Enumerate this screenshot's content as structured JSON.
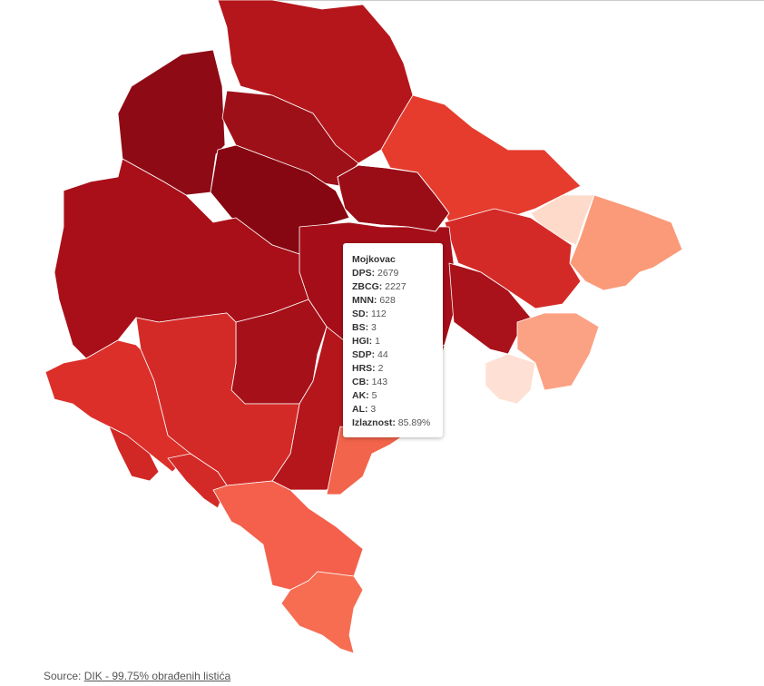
{
  "tooltip": {
    "title": "Mojkovac",
    "rows": [
      {
        "label": "DPS:",
        "value": 2679
      },
      {
        "label": "ZBCG:",
        "value": 2227
      },
      {
        "label": "MNN:",
        "value": 628
      },
      {
        "label": "SD:",
        "value": 112
      },
      {
        "label": "BS:",
        "value": 3
      },
      {
        "label": "HGI:",
        "value": 1
      },
      {
        "label": "SDP:",
        "value": 44
      },
      {
        "label": "HRS:",
        "value": 2
      },
      {
        "label": "CB:",
        "value": 143
      },
      {
        "label": "AK:",
        "value": 5
      },
      {
        "label": "AL:",
        "value": 3
      },
      {
        "label": "Izlaznost:",
        "value": "85.89%"
      }
    ]
  },
  "source": {
    "prefix": "Source:",
    "link": "DIK - 99.75% obrađenih listića"
  }
}
